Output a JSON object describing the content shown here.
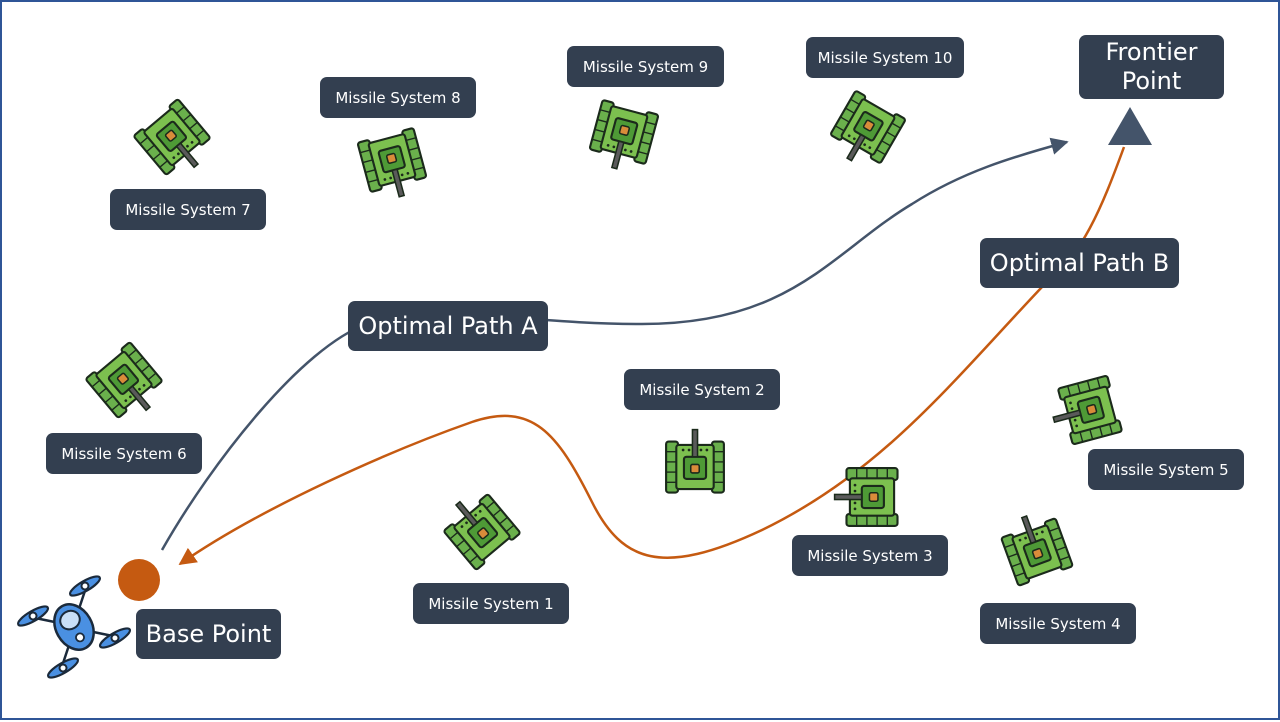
{
  "labels": {
    "frontier_point": "Frontier Point",
    "base_point": "Base Point",
    "optimal_path_a": "Optimal Path A",
    "optimal_path_b": "Optimal Path B",
    "missile_systems": [
      "Missile System 1",
      "Missile System 2",
      "Missile System 3",
      "Missile System 4",
      "Missile System 5",
      "Missile System 6",
      "Missile System 7",
      "Missile System 8",
      "Missile System 9",
      "Missile System 10"
    ]
  },
  "colors": {
    "border": "#2f5597",
    "label_bg": "#333f50",
    "label_text": "#ffffff",
    "path_a": "#44546a",
    "path_b": "#c55a11",
    "base_point": "#c55a11",
    "frontier_marker": "#44546a",
    "tank_body": "#6ab04c",
    "tank_dark": "#2e7d32",
    "tank_outline": "#1b2a1b",
    "drone": "#4a90e2"
  },
  "icons": {
    "tank": "tank-icon",
    "drone": "drone-icon",
    "frontier_marker": "triangle-marker-icon",
    "base_marker": "circle-marker-icon"
  }
}
